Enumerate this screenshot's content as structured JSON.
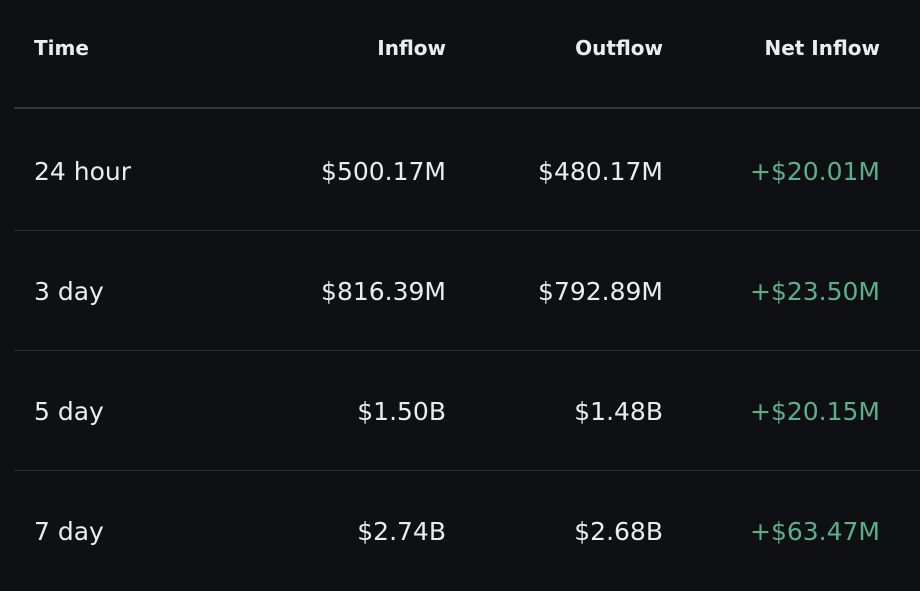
{
  "header": {
    "time": "Time",
    "inflow": "Inflow",
    "outflow": "Outflow",
    "net_inflow": "Net Inflow"
  },
  "rows": [
    {
      "time": "24 hour",
      "inflow": "$500.17M",
      "outflow": "$480.17M",
      "net_inflow": "+$20.01M"
    },
    {
      "time": "3 day",
      "inflow": "$816.39M",
      "outflow": "$792.89M",
      "net_inflow": "+$23.50M"
    },
    {
      "time": "5 day",
      "inflow": "$1.50B",
      "outflow": "$1.48B",
      "net_inflow": "+$20.15M"
    },
    {
      "time": "7 day",
      "inflow": "$2.74B",
      "outflow": "$2.68B",
      "net_inflow": "+$63.47M"
    }
  ],
  "colors": {
    "background": "#0e1013",
    "text": "#eaecef",
    "positive": "#5dae8b",
    "divider": "#2b2f36"
  }
}
